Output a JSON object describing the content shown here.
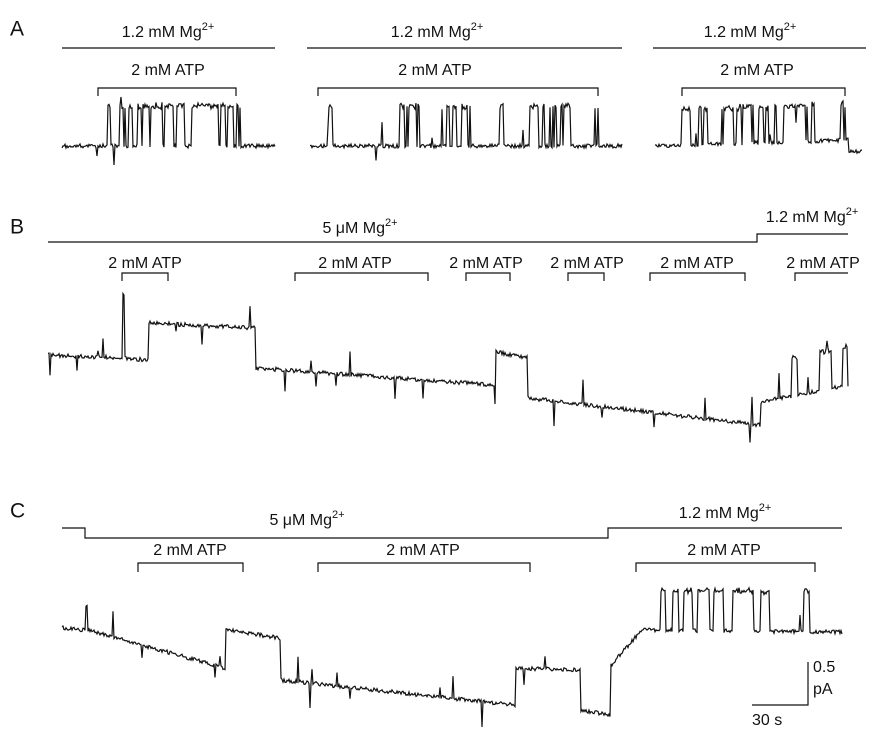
{
  "panels": [
    {
      "label": "A",
      "mg": [
        {
          "text": "1.2 mM Mg",
          "sup": "2+"
        },
        {
          "text": "1.2 mM Mg",
          "sup": "2+"
        },
        {
          "text": "1.2 mM Mg",
          "sup": "2+"
        }
      ],
      "atp": [
        "2 mM ATP",
        "2 mM ATP",
        "2 mM ATP"
      ]
    },
    {
      "label": "B",
      "mg": [
        {
          "text": "5 μM Mg",
          "sup": "2+"
        },
        {
          "text": "1.2 mM Mg",
          "sup": "2+"
        }
      ],
      "atp": [
        "2 mM ATP",
        "2 mM ATP",
        "2 mM ATP",
        "2 mM ATP",
        "2 mM ATP",
        "2 mM ATP"
      ]
    },
    {
      "label": "C",
      "mg": [
        {
          "text": "5 μM Mg",
          "sup": "2+"
        },
        {
          "text": "1.2 mM Mg",
          "sup": "2+"
        }
      ],
      "atp": [
        "2 mM ATP",
        "2 mM ATP",
        "2 mM ATP"
      ]
    }
  ],
  "scale_bar": {
    "amplitude": "0.5",
    "amplitude_unit": "pA",
    "time": "30 s"
  }
}
